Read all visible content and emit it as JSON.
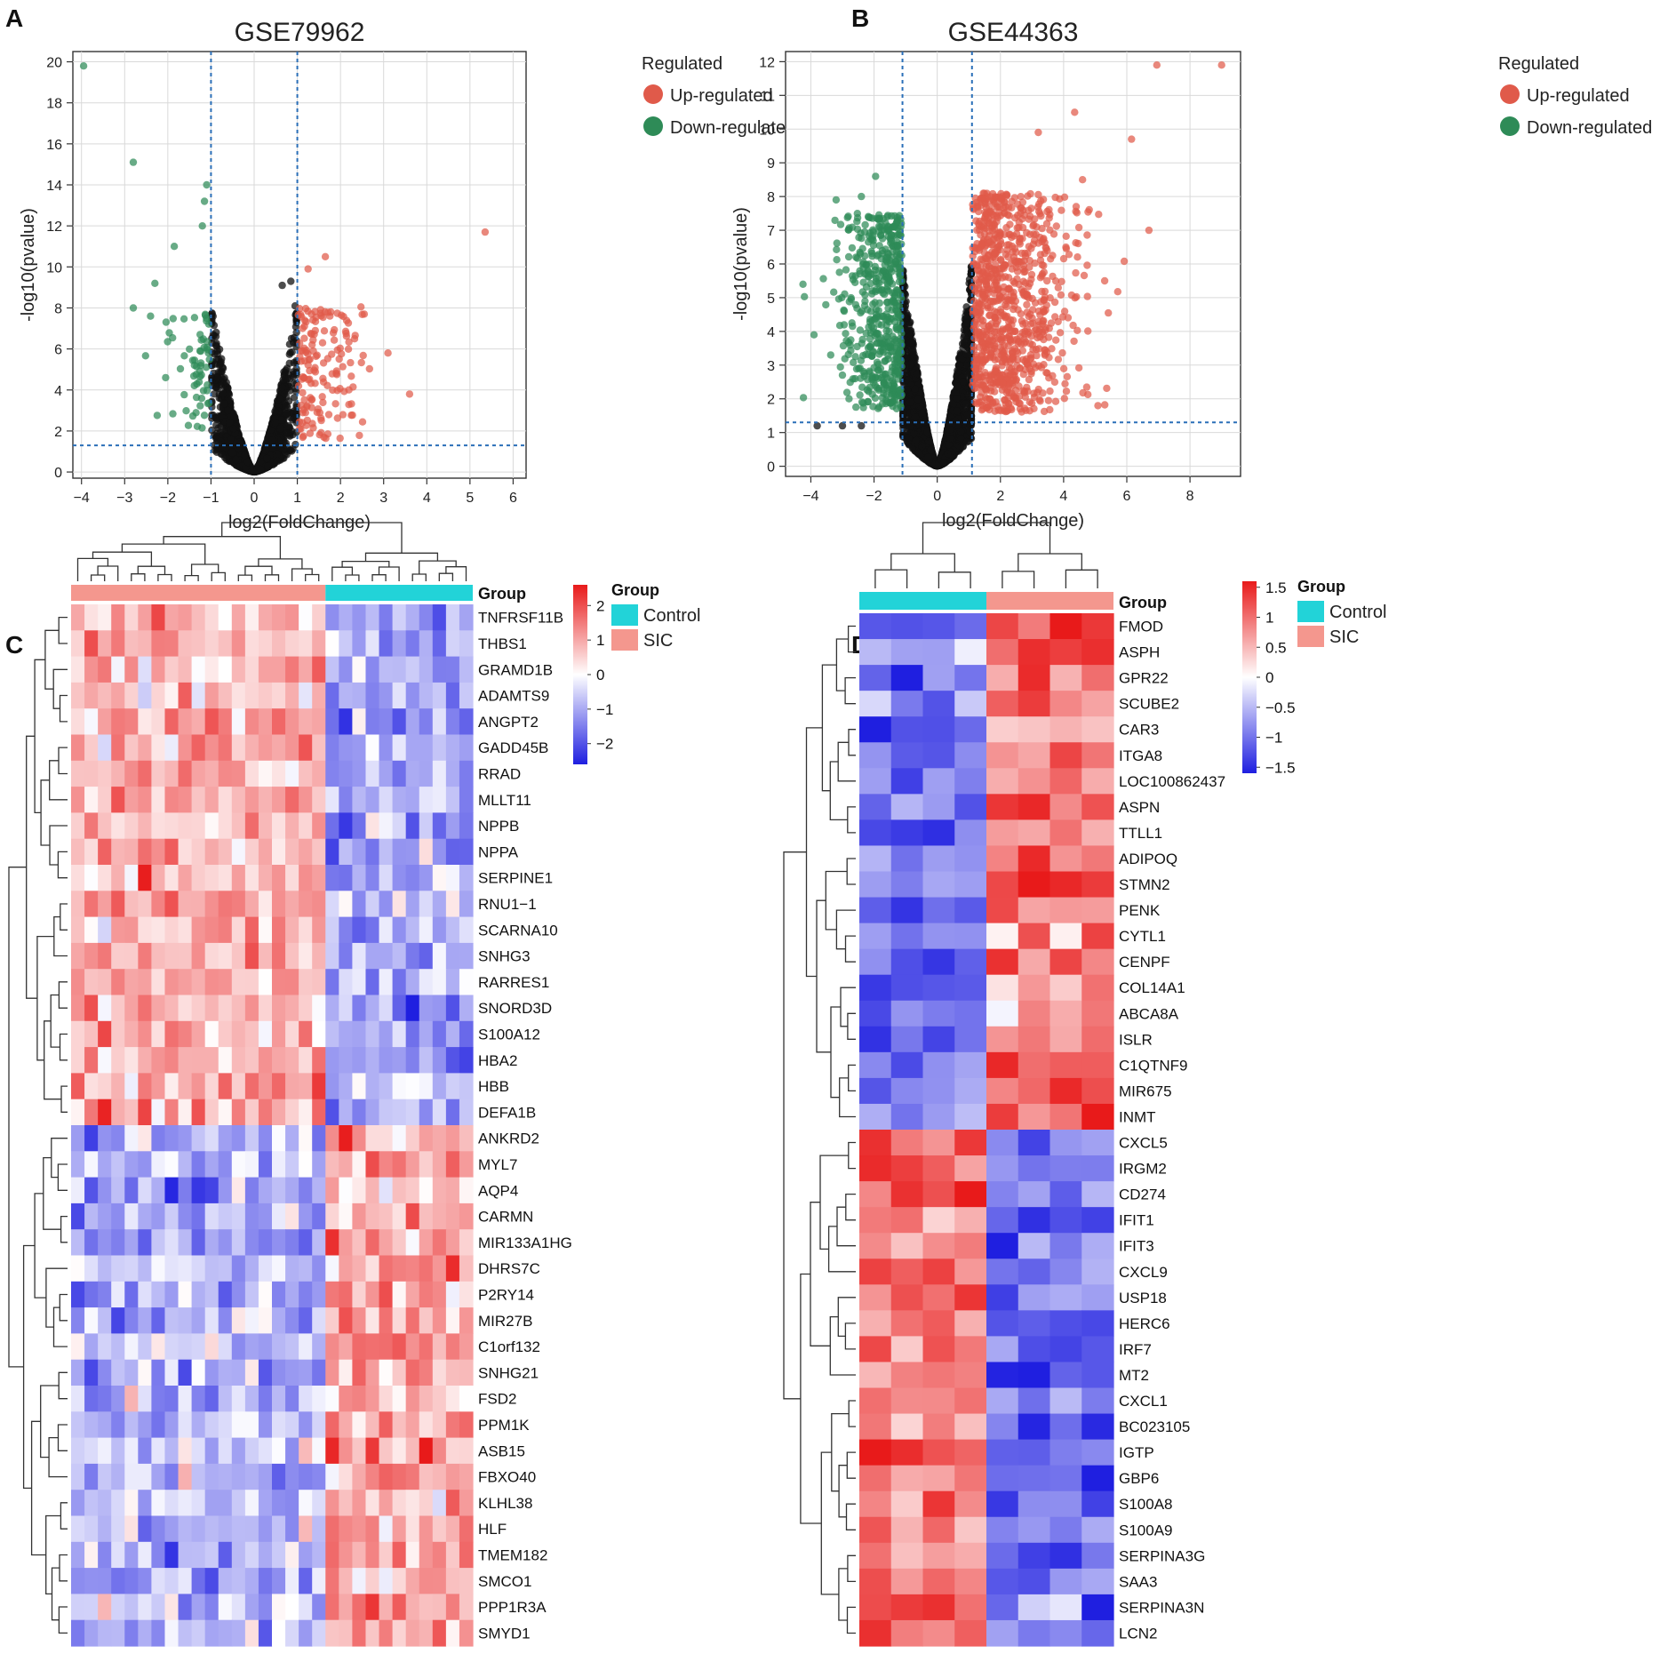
{
  "panels": {
    "A": {
      "letter": "A"
    },
    "B": {
      "letter": "B"
    },
    "C": {
      "letter": "C"
    },
    "D": {
      "letter": "D"
    }
  },
  "colors": {
    "up": "#e05a4a",
    "down": "#2e8b57",
    "ns": "#111111",
    "threshold": "#2a6fb8",
    "control": "#22d3d8",
    "sic": "#f4978e",
    "heat_low": "#1f1fe0",
    "heat_mid": "#ffffff",
    "heat_high": "#e81a1a"
  },
  "chart_data": [
    {
      "id": "A",
      "type": "scatter",
      "title": "GSE79962",
      "xlabel": "log2(FoldChange)",
      "ylabel": "-log10(pvalue)",
      "xlim": [
        -4.2,
        6.3
      ],
      "ylim": [
        -0.3,
        20.5
      ],
      "xticks": [
        -4,
        -3,
        -2,
        -1,
        0,
        1,
        2,
        3,
        4,
        5,
        6
      ],
      "yticks": [
        0,
        2,
        4,
        6,
        8,
        10,
        12,
        14,
        16,
        18,
        20
      ],
      "thresholds": {
        "fc": 1,
        "p": 1.3
      },
      "legend": {
        "title": "Regulated",
        "up": "Up-regulated",
        "down": "Down-regulated",
        "position": "right"
      },
      "notable_points": [
        {
          "x": -3.95,
          "y": 19.8,
          "group": "down"
        },
        {
          "x": -2.8,
          "y": 15.1,
          "group": "down"
        },
        {
          "x": -1.1,
          "y": 14.0,
          "group": "down"
        },
        {
          "x": -1.15,
          "y": 13.2,
          "group": "down"
        },
        {
          "x": -1.2,
          "y": 12.0,
          "group": "down"
        },
        {
          "x": -1.85,
          "y": 11.0,
          "group": "down"
        },
        {
          "x": -2.3,
          "y": 9.2,
          "group": "down"
        },
        {
          "x": -2.8,
          "y": 8.0,
          "group": "down"
        },
        {
          "x": -2.4,
          "y": 7.6,
          "group": "down"
        },
        {
          "x": -2.05,
          "y": 4.6,
          "group": "down"
        },
        {
          "x": 5.35,
          "y": 11.7,
          "group": "up"
        },
        {
          "x": 1.65,
          "y": 10.5,
          "group": "up"
        },
        {
          "x": 1.25,
          "y": 9.9,
          "group": "up"
        },
        {
          "x": 3.6,
          "y": 3.8,
          "group": "up"
        },
        {
          "x": 3.1,
          "y": 5.8,
          "group": "up"
        },
        {
          "x": 2.55,
          "y": 7.7,
          "group": "up"
        },
        {
          "x": 0.65,
          "y": 9.1,
          "group": "ns"
        },
        {
          "x": 0.95,
          "y": 8.1,
          "group": "ns"
        },
        {
          "x": 0.85,
          "y": 9.3,
          "group": "ns"
        }
      ]
    },
    {
      "id": "B",
      "type": "scatter",
      "title": "GSE44363",
      "xlabel": "log2(FoldChange)",
      "ylabel": "-log10(pvalue)",
      "xlim": [
        -4.8,
        9.6
      ],
      "ylim": [
        -0.3,
        12.3
      ],
      "xticks": [
        -4,
        -2,
        0,
        2,
        4,
        6,
        8
      ],
      "yticks": [
        0,
        1,
        2,
        3,
        4,
        5,
        6,
        7,
        8,
        9,
        10,
        11,
        12
      ],
      "thresholds": {
        "fc": 1.1,
        "p": 1.3
      },
      "legend": {
        "title": "Regulated",
        "up": "Up-regulated",
        "down": "Down-regulated",
        "position": "right"
      },
      "notable_points": [
        {
          "x": 6.95,
          "y": 11.9,
          "group": "up"
        },
        {
          "x": 9.0,
          "y": 11.9,
          "group": "up"
        },
        {
          "x": 4.35,
          "y": 10.5,
          "group": "up"
        },
        {
          "x": 6.15,
          "y": 9.7,
          "group": "up"
        },
        {
          "x": 3.2,
          "y": 9.9,
          "group": "up"
        },
        {
          "x": 4.6,
          "y": 8.5,
          "group": "up"
        },
        {
          "x": 6.7,
          "y": 7.0,
          "group": "up"
        },
        {
          "x": 5.3,
          "y": 5.5,
          "group": "up"
        },
        {
          "x": -4.25,
          "y": 5.4,
          "group": "down"
        },
        {
          "x": -3.9,
          "y": 3.9,
          "group": "down"
        },
        {
          "x": -1.95,
          "y": 8.6,
          "group": "down"
        },
        {
          "x": -2.4,
          "y": 8.0,
          "group": "down"
        },
        {
          "x": -3.2,
          "y": 7.9,
          "group": "down"
        },
        {
          "x": -3.8,
          "y": 1.2,
          "group": "ns"
        },
        {
          "x": -3.0,
          "y": 1.2,
          "group": "ns"
        },
        {
          "x": -2.4,
          "y": 1.2,
          "group": "ns"
        }
      ]
    },
    {
      "id": "C",
      "type": "heatmap",
      "group_label": "Group",
      "groups": [
        {
          "name": "SIC",
          "count": 19,
          "color": "#f4978e"
        },
        {
          "name": "Control",
          "count": 11,
          "color": "#22d3d8"
        }
      ],
      "legend": {
        "title": "Group",
        "items": [
          "Control",
          "SIC"
        ]
      },
      "colorbar": {
        "range": [
          -2.6,
          2.6
        ],
        "ticks": [
          2,
          1,
          0,
          -1,
          -2
        ]
      },
      "genes": [
        "TNFRSF11B",
        "THBS1",
        "GRAMD1B",
        "ADAMTS9",
        "ANGPT2",
        "GADD45B",
        "RRAD",
        "MLLT11",
        "NPPB",
        "NPPA",
        "SERPINE1",
        "RNU1−1",
        "SCARNA10",
        "SNHG3",
        "RARRES1",
        "SNORD3D",
        "S100A12",
        "HBA2",
        "HBB",
        "DEFA1B",
        "ANKRD2",
        "MYL7",
        "AQP4",
        "CARMN",
        "MIR133A1HG",
        "DHRS7C",
        "P2RY14",
        "MIR27B",
        "C1orf132",
        "SNHG21",
        "FSD2",
        "PPM1K",
        "ASB15",
        "FBXO40",
        "KLHL38",
        "HLF",
        "TMEM182",
        "SMCO1",
        "PPP1R3A",
        "SMYD1"
      ],
      "gene_direction": [
        1,
        1,
        1,
        1,
        1,
        1,
        1,
        1,
        1,
        1,
        1,
        1,
        1,
        1,
        1,
        1,
        1,
        1,
        1,
        1,
        -1,
        -1,
        -1,
        -1,
        -1,
        -1,
        -1,
        -1,
        -1,
        -1,
        -1,
        -1,
        -1,
        -1,
        -1,
        -1,
        -1,
        -1,
        -1,
        -1
      ],
      "mean_abs_z": 1.0
    },
    {
      "id": "D",
      "type": "heatmap",
      "group_label": "Group",
      "groups": [
        {
          "name": "Control",
          "count": 4,
          "color": "#22d3d8"
        },
        {
          "name": "SIC",
          "count": 4,
          "color": "#f4978e"
        }
      ],
      "legend": {
        "title": "Group",
        "items": [
          "Control",
          "SIC"
        ]
      },
      "colorbar": {
        "range": [
          -1.6,
          1.6
        ],
        "ticks": [
          1.5,
          1,
          0.5,
          0,
          -0.5,
          -1,
          -1.5
        ]
      },
      "genes": [
        "FMOD",
        "ASPH",
        "GPR22",
        "SCUBE2",
        "CAR3",
        "ITGA8",
        "LOC100862437",
        "ASPN",
        "TTLL1",
        "ADIPOQ",
        "STMN2",
        "PENK",
        "CYTL1",
        "CENPF",
        "COL14A1",
        "ABCA8A",
        "ISLR",
        "C1QTNF9",
        "MIR675",
        "INMT",
        "CXCL5",
        "IRGM2",
        "CD274",
        "IFIT1",
        "IFIT3",
        "CXCL9",
        "USP18",
        "HERC6",
        "IRF7",
        "MT2",
        "CXCL1",
        "BC023105",
        "IGTP",
        "GBP6",
        "S100A8",
        "S100A9",
        "SERPINA3G",
        "SAA3",
        "SERPINA3N",
        "LCN2"
      ],
      "gene_direction": [
        1,
        1,
        1,
        1,
        1,
        1,
        1,
        1,
        1,
        1,
        1,
        1,
        1,
        1,
        1,
        1,
        1,
        1,
        1,
        1,
        -1,
        -1,
        -1,
        -1,
        -1,
        -1,
        -1,
        -1,
        -1,
        -1,
        -1,
        -1,
        -1,
        -1,
        -1,
        -1,
        -1,
        -1,
        -1,
        -1
      ],
      "mean_abs_z": 1.1
    }
  ]
}
